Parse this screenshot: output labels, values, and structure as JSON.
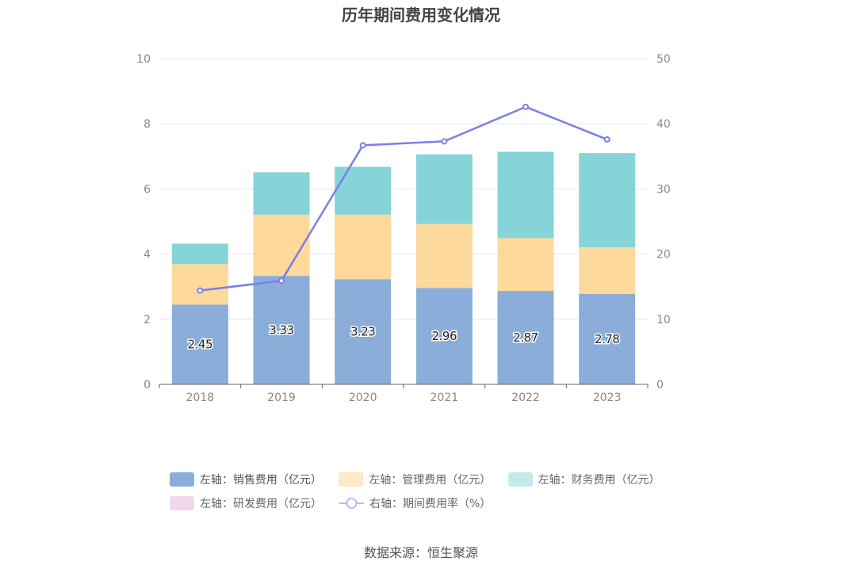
{
  "chart_data": {
    "type": "bar",
    "stacked": true,
    "title": "历年期间费用变化情况",
    "categories": [
      "2018",
      "2019",
      "2020",
      "2021",
      "2022",
      "2023"
    ],
    "left_axis": {
      "ylim": [
        0,
        10
      ],
      "ticks": [
        "0",
        "2",
        "4",
        "6",
        "8",
        "10"
      ]
    },
    "right_axis": {
      "ylim": [
        0,
        50
      ],
      "ticks": [
        "0",
        "10",
        "20",
        "30",
        "40",
        "50"
      ]
    },
    "series": [
      {
        "name": "左轴：销售费用（亿元）",
        "axis": "left",
        "type": "bar",
        "color": "#8badd9",
        "values": [
          2.45,
          3.33,
          3.23,
          2.96,
          2.87,
          2.78
        ],
        "labels": [
          "2.45",
          "3.33",
          "3.23",
          "2.96",
          "2.87",
          "2.78"
        ]
      },
      {
        "name": "左轴：管理费用（亿元）",
        "axis": "left",
        "type": "bar",
        "color": "#fdd99b",
        "values": [
          1.24,
          1.88,
          1.98,
          1.96,
          1.62,
          1.43
        ]
      },
      {
        "name": "左轴：财务费用（亿元）",
        "axis": "left",
        "type": "bar",
        "color": "#86d4d8",
        "values": [
          0.63,
          1.3,
          1.47,
          2.14,
          2.65,
          2.89
        ]
      },
      {
        "name": "左轴：研发费用（亿元）",
        "axis": "left",
        "type": "bar",
        "color": "#efd9ea",
        "values": [
          0,
          0,
          0,
          0,
          0,
          0
        ]
      },
      {
        "name": "右轴：期间费用率（%）",
        "axis": "right",
        "type": "line",
        "color": "#7b7fe8",
        "values": [
          14.4,
          15.9,
          36.7,
          37.3,
          42.6,
          37.6
        ]
      }
    ],
    "source": "数据来源：恒生聚源"
  }
}
